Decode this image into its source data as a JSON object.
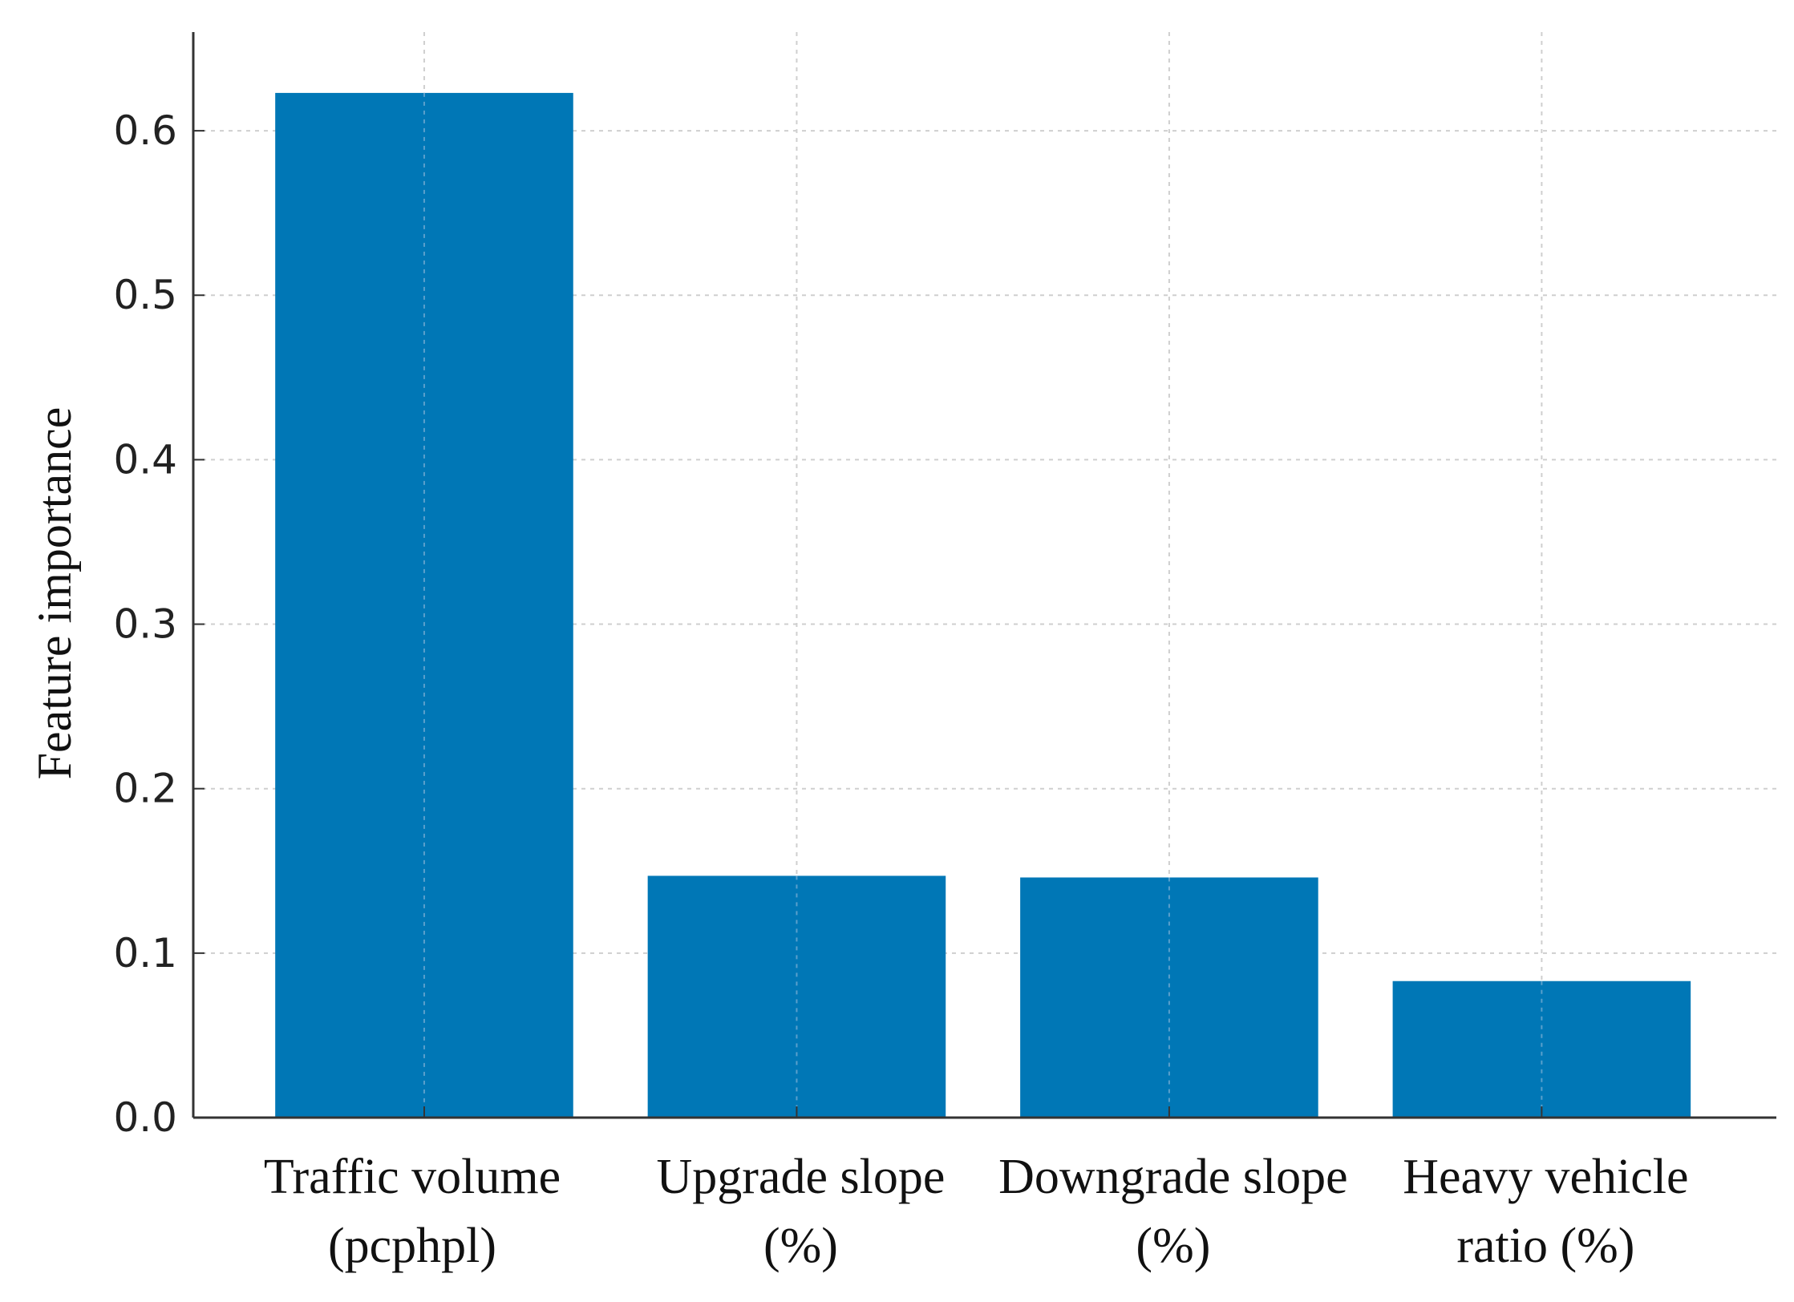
{
  "chart_data": {
    "type": "bar",
    "categories": [
      [
        "Traffic volume",
        "(pcphpl)"
      ],
      [
        "Upgrade slope",
        "(%)"
      ],
      [
        "Downgrade slope",
        "(%)"
      ],
      [
        "Heavy vehicle",
        "ratio (%)"
      ]
    ],
    "values": [
      0.623,
      0.147,
      0.146,
      0.083
    ],
    "ylabel": "Feature importance",
    "xlabel": "",
    "title": "",
    "ylim": [
      0,
      0.66
    ],
    "yticks": [
      "0.0",
      "0.1",
      "0.2",
      "0.3",
      "0.4",
      "0.5",
      "0.6"
    ],
    "grid": true,
    "bar_color": "#0077b6",
    "grid_color": "#cfcfcf",
    "axis_color": "#333333"
  }
}
